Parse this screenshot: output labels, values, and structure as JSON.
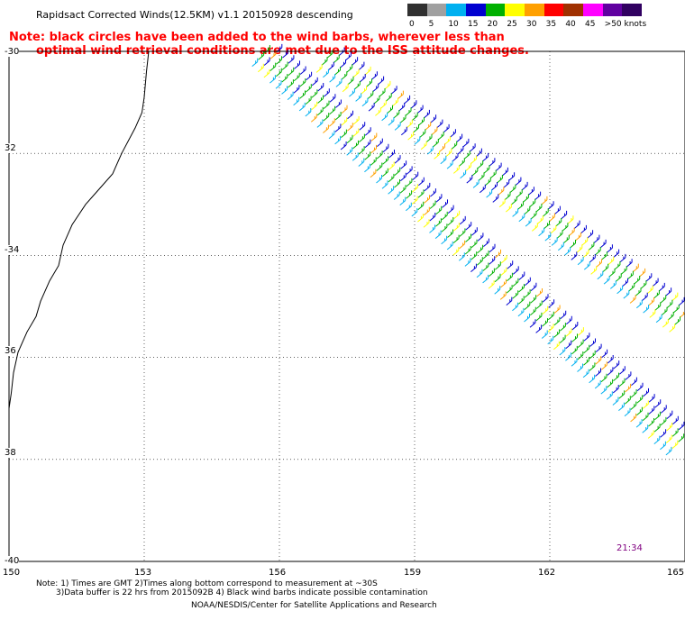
{
  "title": "Rapidsact Corrected Winds(12.5KM) v1.1 20150928 descending",
  "note": {
    "line1": "Note: black circles have been added to the wind barbs, wherever less than",
    "line2": "optimal wind retrieval conditions are met due to the ISS attitude changes."
  },
  "legend": {
    "unit": "knots",
    "labels": [
      "0",
      "5",
      "10",
      "15",
      "20",
      "25",
      "30",
      "35",
      "40",
      "45",
      ">50 knots"
    ],
    "colors": [
      "#303030",
      "#a0a0a0",
      "#00b0f0",
      "#0000d0",
      "#00b000",
      "#ffff00",
      "#ffa000",
      "#ff0000",
      "#a03000",
      "#ff00ff",
      "#6000a0",
      "#300060"
    ]
  },
  "map": {
    "lat_range": [
      -40,
      -30
    ],
    "lon_range": [
      150,
      165
    ],
    "lat_ticks": [
      "-30",
      "32",
      "-34",
      "36",
      "38",
      "-40"
    ],
    "lon_ticks": [
      "150",
      "153",
      "156",
      "159",
      "162",
      "165"
    ],
    "time_label": "21:34",
    "swaths": [
      {
        "name": "swath-west",
        "start": [
          155.6,
          -30.1
        ],
        "end": [
          165.0,
          -37.9
        ],
        "rows": 4
      },
      {
        "name": "swath-east",
        "start": [
          157.0,
          -30.2
        ],
        "end": [
          165.0,
          -35.4
        ],
        "rows": 4
      }
    ]
  },
  "footer": {
    "line1": "Note: 1) Times are GMT 2)Times along bottom correspond to measurement at ~30S",
    "line2": "3)Data buffer is 22 hrs from 2015092B 4) Black wind barbs indicate possible contamination",
    "line3": "NOAA/NESDIS/Center for Satellite Applications and Research"
  }
}
